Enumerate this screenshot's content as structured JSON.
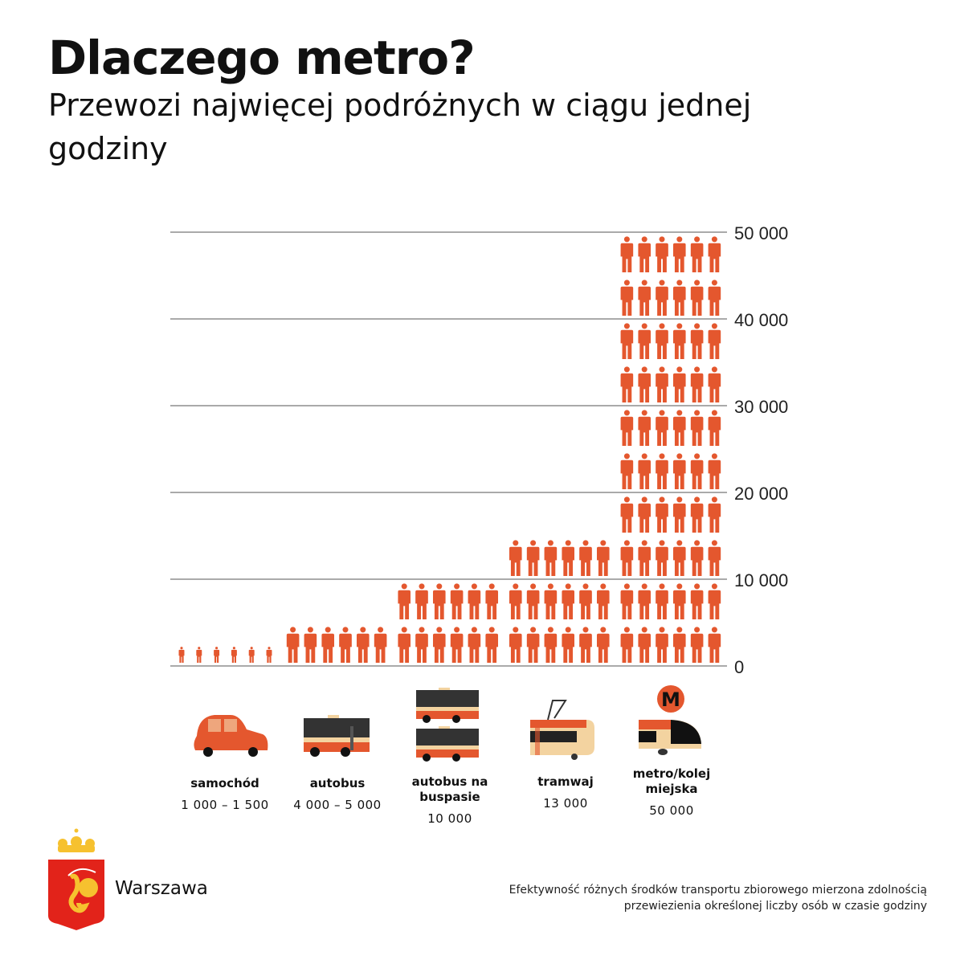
{
  "header": {
    "title": "Dlaczego metro?",
    "subtitle": "Przewozi najwięcej podróżnych w ciągu jednej godziny"
  },
  "chart_data": {
    "type": "bar",
    "style": "pictogram",
    "ylim": [
      0,
      50000
    ],
    "yticks": [
      0,
      10000,
      20000,
      30000,
      40000,
      50000
    ],
    "ytick_labels": [
      "0",
      "10 000",
      "20 000",
      "30 000",
      "40 000",
      "50 000"
    ],
    "grid": true,
    "unit_per_pictogram_row": 5000,
    "categories": [
      "samochód",
      "autobus",
      "autobus na buspasie",
      "tramwaj",
      "metro/kolej miejska"
    ],
    "value_labels": [
      "1 000 – 1 500",
      "4 000 – 5 000",
      "10 000",
      "13 000",
      "50 000"
    ],
    "values": [
      1500,
      5000,
      10000,
      13000,
      50000
    ],
    "value_ranges": [
      [
        1000,
        1500
      ],
      [
        4000,
        5000
      ],
      [
        10000,
        10000
      ],
      [
        13000,
        13000
      ],
      [
        50000,
        50000
      ]
    ],
    "colors": {
      "pictogram": "#e4572e",
      "grid": "#777777"
    }
  },
  "vehicles": [
    "car-icon",
    "bus-icon",
    "double-bus-icon",
    "tram-icon",
    "metro-icon"
  ],
  "footer": {
    "city": "Warszawa",
    "note_line1": "Efektywność różnych środków transportu zbiorowego mierzona zdolnością",
    "note_line2": "przewiezienia określonej liczby osób w czasie godziny"
  }
}
